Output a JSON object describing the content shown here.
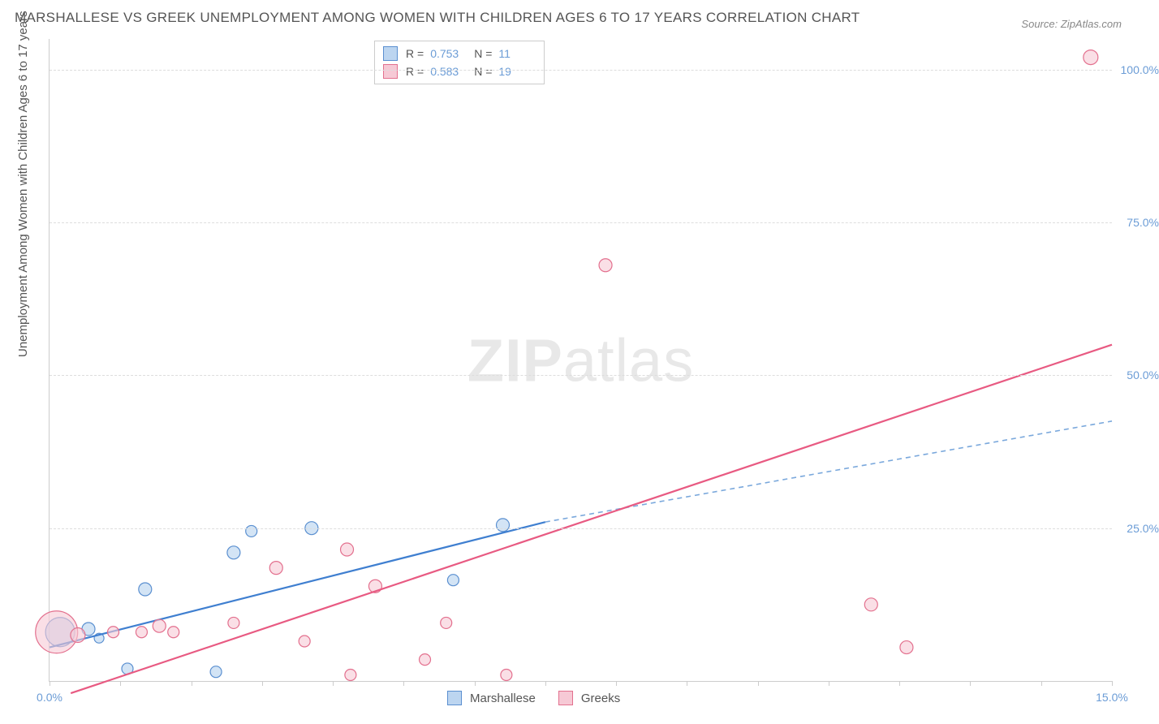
{
  "title": "MARSHALLESE VS GREEK UNEMPLOYMENT AMONG WOMEN WITH CHILDREN AGES 6 TO 17 YEARS CORRELATION CHART",
  "source_label": "Source:",
  "source_value": "ZipAtlas.com",
  "watermark_a": "ZIP",
  "watermark_b": "atlas",
  "yaxis_label": "Unemployment Among Women with Children Ages 6 to 17 years",
  "chart": {
    "type": "scatter",
    "xlim": [
      0,
      15
    ],
    "ylim": [
      0,
      105
    ],
    "xticks": [
      0,
      1,
      2,
      3,
      4,
      5,
      6,
      7,
      8,
      9,
      10,
      11,
      12,
      13,
      14,
      15
    ],
    "xtick_labels_shown": {
      "0": "0.0%",
      "15": "15.0%"
    },
    "yticks": [
      25,
      50,
      75,
      100
    ],
    "ytick_labels": [
      "25.0%",
      "50.0%",
      "75.0%",
      "100.0%"
    ],
    "grid_color": "#dddddd",
    "axis_color": "#cccccc",
    "background_color": "#ffffff",
    "series": [
      {
        "name": "Marshallese",
        "fill": "#bcd5f0",
        "stroke": "#5a8fd0",
        "fill_opacity": 0.65,
        "points": [
          {
            "x": 0.15,
            "y": 8.0,
            "r": 18
          },
          {
            "x": 0.55,
            "y": 8.5,
            "r": 8
          },
          {
            "x": 0.7,
            "y": 7.0,
            "r": 6
          },
          {
            "x": 1.1,
            "y": 2.0,
            "r": 7
          },
          {
            "x": 1.35,
            "y": 15.0,
            "r": 8
          },
          {
            "x": 2.35,
            "y": 1.5,
            "r": 7
          },
          {
            "x": 2.6,
            "y": 21.0,
            "r": 8
          },
          {
            "x": 2.85,
            "y": 24.5,
            "r": 7
          },
          {
            "x": 3.7,
            "y": 25.0,
            "r": 8
          },
          {
            "x": 5.7,
            "y": 16.5,
            "r": 7
          },
          {
            "x": 6.4,
            "y": 25.5,
            "r": 8
          }
        ],
        "trend": {
          "x1": 0.0,
          "y1": 5.5,
          "x2": 7.0,
          "y2": 26.0,
          "solid": true,
          "color": "#3f7fd0",
          "width": 2.2
        },
        "trend_ext": {
          "x1": 7.0,
          "y1": 26.0,
          "x2": 15.0,
          "y2": 42.5,
          "dash": "6,5",
          "color": "#7aa8dc",
          "width": 1.6
        }
      },
      {
        "name": "Greeks",
        "fill": "#f6c9d5",
        "stroke": "#e3708e",
        "fill_opacity": 0.6,
        "points": [
          {
            "x": 0.1,
            "y": 8.0,
            "r": 26
          },
          {
            "x": 0.4,
            "y": 7.5,
            "r": 9
          },
          {
            "x": 0.9,
            "y": 8.0,
            "r": 7
          },
          {
            "x": 1.3,
            "y": 8.0,
            "r": 7
          },
          {
            "x": 1.55,
            "y": 9.0,
            "r": 8
          },
          {
            "x": 1.75,
            "y": 8.0,
            "r": 7
          },
          {
            "x": 2.6,
            "y": 9.5,
            "r": 7
          },
          {
            "x": 3.2,
            "y": 18.5,
            "r": 8
          },
          {
            "x": 3.6,
            "y": 6.5,
            "r": 7
          },
          {
            "x": 4.2,
            "y": 21.5,
            "r": 8
          },
          {
            "x": 4.25,
            "y": 1.0,
            "r": 7
          },
          {
            "x": 4.6,
            "y": 15.5,
            "r": 8
          },
          {
            "x": 5.3,
            "y": 3.5,
            "r": 7
          },
          {
            "x": 5.6,
            "y": 9.5,
            "r": 7
          },
          {
            "x": 6.45,
            "y": 1.0,
            "r": 7
          },
          {
            "x": 7.85,
            "y": 68.0,
            "r": 8
          },
          {
            "x": 11.6,
            "y": 12.5,
            "r": 8
          },
          {
            "x": 12.1,
            "y": 5.5,
            "r": 8
          },
          {
            "x": 14.7,
            "y": 102.0,
            "r": 9
          }
        ],
        "trend": {
          "x1": 0.3,
          "y1": -2.0,
          "x2": 15.0,
          "y2": 55.0,
          "solid": true,
          "color": "#e85a82",
          "width": 2.2
        }
      }
    ]
  },
  "stats": {
    "rows": [
      {
        "swatch_fill": "#bcd5f0",
        "swatch_stroke": "#5a8fd0",
        "r_label": "R =",
        "r": "0.753",
        "n_label": "N =",
        "n": "11"
      },
      {
        "swatch_fill": "#f6c9d5",
        "swatch_stroke": "#e3708e",
        "r_label": "R =",
        "r": "0.583",
        "n_label": "N =",
        "n": "19"
      }
    ]
  },
  "legend": [
    {
      "swatch_fill": "#bcd5f0",
      "swatch_stroke": "#5a8fd0",
      "label": "Marshallese"
    },
    {
      "swatch_fill": "#f6c9d5",
      "swatch_stroke": "#e3708e",
      "label": "Greeks"
    }
  ]
}
